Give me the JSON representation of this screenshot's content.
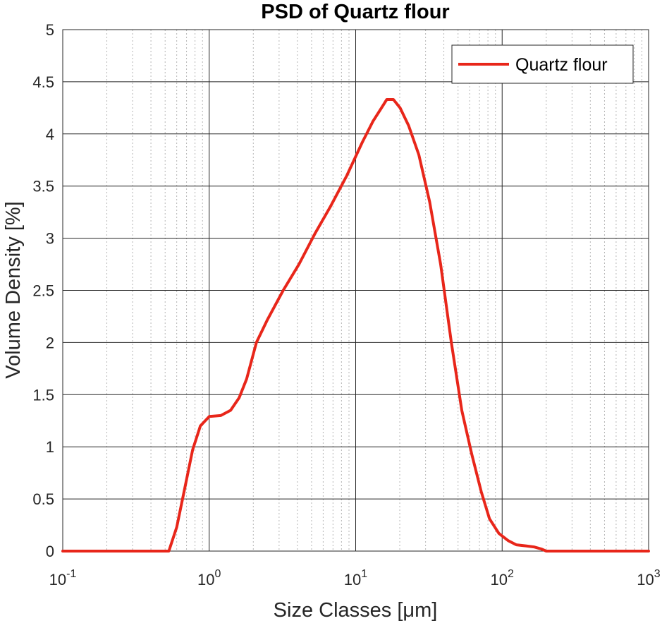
{
  "chart_data": {
    "type": "line",
    "title": "PSD of Quartz flour",
    "xlabel": "Size Classes [μm]",
    "ylabel": "Volume Density [%]",
    "xscale": "log",
    "xlim": [
      0.1,
      1000
    ],
    "ylim": [
      0,
      5
    ],
    "grid": true,
    "minor_grid": true,
    "legend": "top-right",
    "x_ticks": [
      {
        "base": "10",
        "exp": "-1",
        "value": 0.1
      },
      {
        "base": "10",
        "exp": "0",
        "value": 1
      },
      {
        "base": "10",
        "exp": "1",
        "value": 10
      },
      {
        "base": "10",
        "exp": "2",
        "value": 100
      },
      {
        "base": "10",
        "exp": "3",
        "value": 1000
      }
    ],
    "y_ticks": [
      "0",
      "0.5",
      "1",
      "1.5",
      "2",
      "2.5",
      "3",
      "3.5",
      "4",
      "4.5",
      "5"
    ],
    "series": [
      {
        "name": "Quartz flour",
        "color": "#e8261a",
        "x": [
          0.1,
          0.5,
          0.53,
          0.6,
          0.68,
          0.77,
          0.87,
          1.0,
          1.2,
          1.4,
          1.6,
          1.8,
          2.1,
          2.5,
          3.2,
          4.1,
          5.3,
          6.7,
          8.7,
          11.1,
          13.1,
          15.0,
          16.3,
          18.1,
          20.1,
          23.0,
          27.0,
          32.0,
          38.0,
          45.0,
          53.0,
          62.0,
          72.0,
          82.0,
          95.0,
          110.0,
          125.0,
          145.0,
          165.0,
          185.0,
          200.0,
          1000.0
        ],
        "y": [
          0.0,
          0.0,
          0.0,
          0.23,
          0.6,
          0.97,
          1.2,
          1.29,
          1.3,
          1.35,
          1.47,
          1.65,
          2.0,
          2.22,
          2.5,
          2.75,
          3.05,
          3.3,
          3.6,
          3.92,
          4.12,
          4.25,
          4.33,
          4.33,
          4.25,
          4.08,
          3.8,
          3.35,
          2.75,
          2.0,
          1.35,
          0.93,
          0.57,
          0.31,
          0.17,
          0.1,
          0.06,
          0.05,
          0.04,
          0.02,
          0.0,
          0.0
        ]
      }
    ]
  }
}
